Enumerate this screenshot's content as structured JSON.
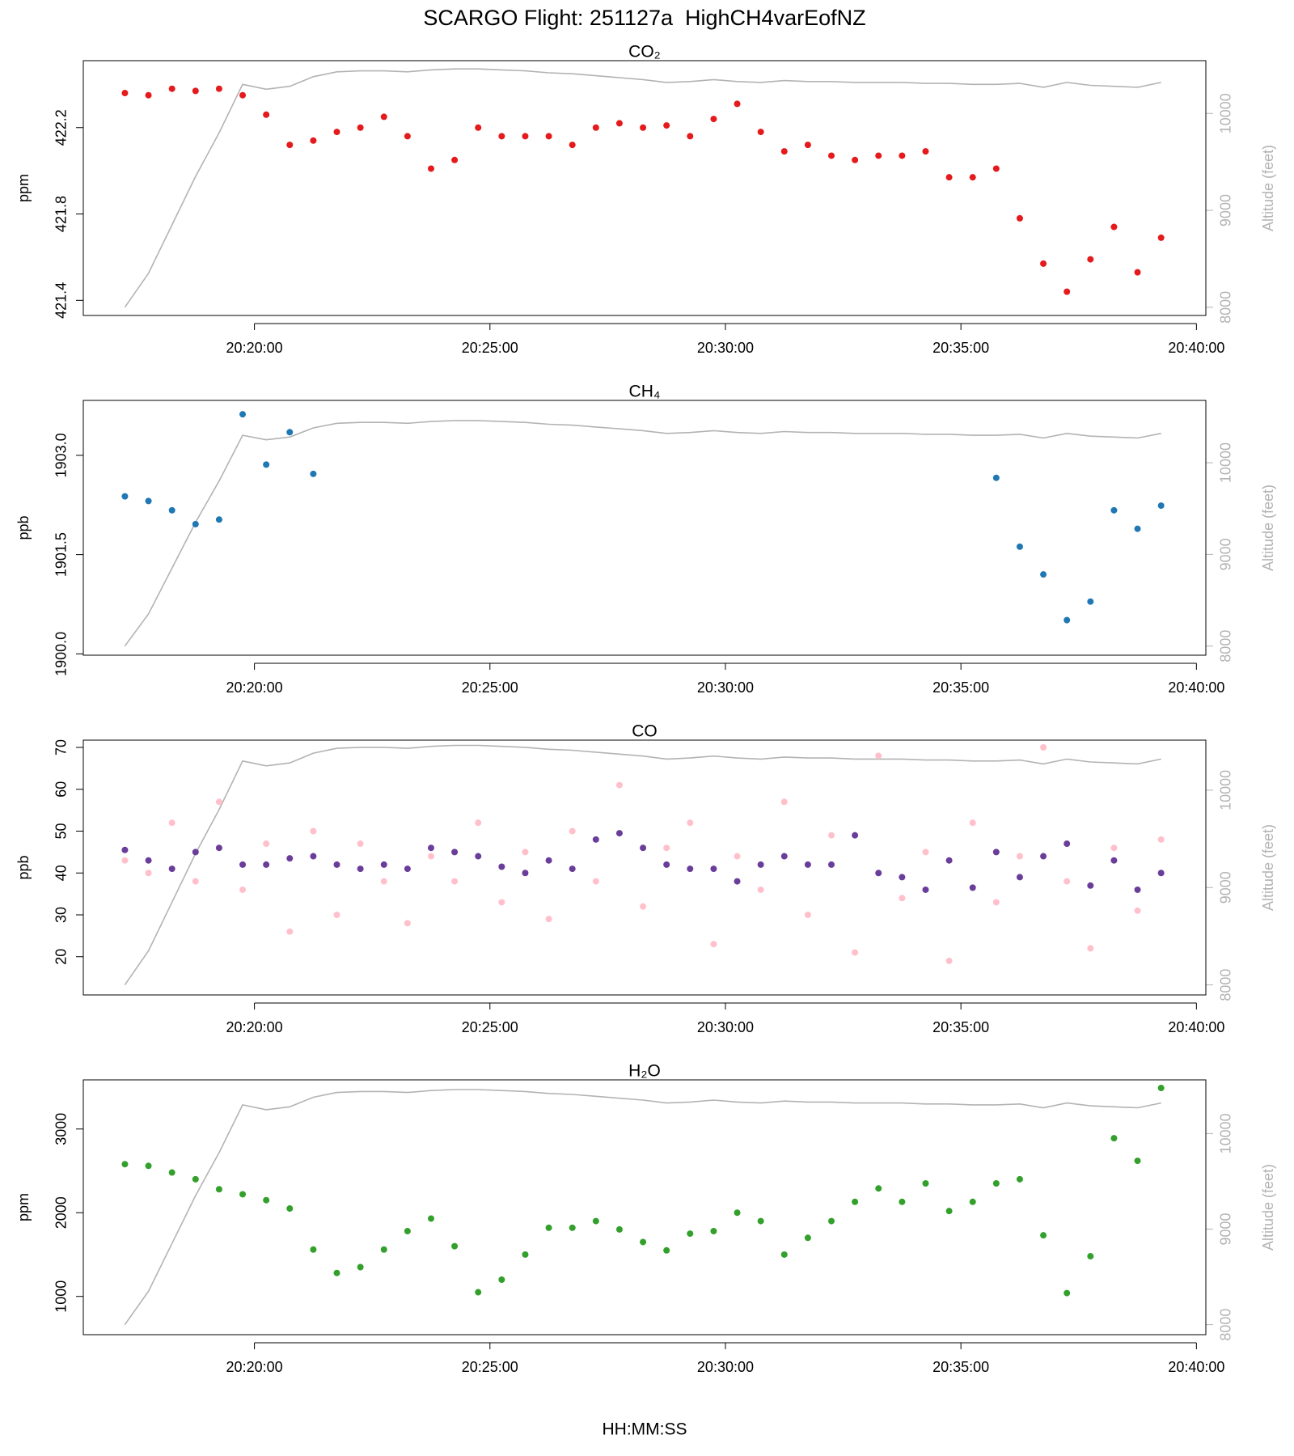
{
  "title": "SCARGO Flight: 251127a  HighCH4varEofNZ",
  "xlabel": "HH:MM:SS",
  "chart_data": [
    {
      "type": "scatter",
      "title": "CO₂",
      "ylabel": "ppm",
      "y2label": "Altitude (feet)",
      "xlim": [
        "20:16:22",
        "20:40:12"
      ],
      "xticks": [
        "20:20:00",
        "20:25:00",
        "20:30:00",
        "20:35:00",
        "20:40:00"
      ],
      "ylim": [
        421.33,
        422.51
      ],
      "yticks": [
        421.4,
        421.8,
        422.2
      ],
      "y2lim": [
        7915,
        10545
      ],
      "y2ticks": [
        8000,
        9000,
        10000
      ],
      "x": [
        "20:17:15",
        "20:17:45",
        "20:18:15",
        "20:18:45",
        "20:19:15",
        "20:19:45",
        "20:20:15",
        "20:20:45",
        "20:21:15",
        "20:21:45",
        "20:22:15",
        "20:22:45",
        "20:23:15",
        "20:23:45",
        "20:24:15",
        "20:24:45",
        "20:25:15",
        "20:25:45",
        "20:26:15",
        "20:26:45",
        "20:27:15",
        "20:27:45",
        "20:28:15",
        "20:28:45",
        "20:29:15",
        "20:29:45",
        "20:30:15",
        "20:30:45",
        "20:31:15",
        "20:31:45",
        "20:32:15",
        "20:32:45",
        "20:33:15",
        "20:33:45",
        "20:34:15",
        "20:34:45",
        "20:35:15",
        "20:35:45",
        "20:36:15",
        "20:36:45",
        "20:37:15",
        "20:37:45",
        "20:38:15",
        "20:38:45",
        "20:39:15"
      ],
      "series": [
        {
          "color": "#e41a1c",
          "values": [
            422.36,
            422.35,
            422.38,
            422.37,
            422.38,
            422.35,
            422.26,
            422.12,
            422.14,
            422.18,
            422.2,
            422.25,
            422.16,
            422.01,
            422.05,
            422.2,
            422.16,
            422.16,
            422.16,
            422.12,
            422.2,
            422.22,
            422.2,
            422.21,
            422.16,
            422.24,
            422.31,
            422.18,
            422.09,
            422.12,
            422.07,
            422.05,
            422.07,
            422.07,
            422.09,
            421.97,
            421.97,
            422.01,
            421.78,
            421.57,
            421.44,
            421.59,
            421.74,
            421.53,
            421.69
          ]
        },
        {
          "color": "#b3b3b3",
          "mode": "line",
          "axis": "y2",
          "values": [
            8000,
            8350,
            8850,
            9350,
            9800,
            10300,
            10250,
            10280,
            10380,
            10430,
            10440,
            10440,
            10430,
            10450,
            10460,
            10460,
            10450,
            10440,
            10420,
            10410,
            10390,
            10370,
            10350,
            10320,
            10330,
            10350,
            10330,
            10320,
            10340,
            10330,
            10330,
            10320,
            10320,
            10320,
            10310,
            10310,
            10300,
            10300,
            10310,
            10270,
            10320,
            10290,
            10280,
            10270,
            10320
          ]
        }
      ]
    },
    {
      "type": "scatter",
      "title": "CH₄",
      "ylabel": "ppb",
      "y2label": "Altitude (feet)",
      "xlim": [
        "20:16:22",
        "20:40:12"
      ],
      "xticks": [
        "20:20:00",
        "20:25:00",
        "20:30:00",
        "20:35:00",
        "20:40:00"
      ],
      "ylim": [
        1899.98,
        1903.83
      ],
      "yticks": [
        {
          "value": 1900,
          "label": "1900.0"
        },
        1901.5,
        {
          "value": 1903,
          "label": "1903.0"
        }
      ],
      "y2lim": [
        7900,
        10680
      ],
      "y2ticks": [
        8000,
        9000,
        10000
      ],
      "x": [
        "20:17:15",
        "20:17:45",
        "20:18:15",
        "20:18:45",
        "20:19:15",
        "20:19:45",
        "20:20:15",
        "20:20:45",
        "20:21:15",
        "20:21:45",
        "20:22:15",
        "20:22:45",
        "20:23:15",
        "20:23:45",
        "20:24:15",
        "20:24:45",
        "20:25:15",
        "20:25:45",
        "20:26:15",
        "20:26:45",
        "20:27:15",
        "20:27:45",
        "20:28:15",
        "20:28:45",
        "20:29:15",
        "20:29:45",
        "20:30:15",
        "20:30:45",
        "20:31:15",
        "20:31:45",
        "20:32:15",
        "20:32:45",
        "20:33:15",
        "20:33:45",
        "20:34:15",
        "20:34:45",
        "20:35:15",
        "20:35:45",
        "20:36:15",
        "20:36:45",
        "20:37:15",
        "20:37:45",
        "20:38:15",
        "20:38:45",
        "20:39:15"
      ],
      "series": [
        {
          "color": "#1f78b4",
          "values": [
            1902.38,
            1902.31,
            1902.17,
            1901.96,
            1902.03,
            1903.62,
            1902.86,
            1903.35,
            1902.72,
            null,
            null,
            null,
            null,
            null,
            null,
            null,
            null,
            null,
            null,
            null,
            null,
            null,
            null,
            null,
            null,
            null,
            null,
            null,
            null,
            null,
            null,
            null,
            null,
            null,
            null,
            null,
            null,
            1902.66,
            1901.62,
            1901.2,
            1900.51,
            1900.79,
            1902.17,
            1901.89,
            1902.24
          ]
        },
        {
          "color": "#b3b3b3",
          "mode": "line",
          "axis": "y2",
          "values": [
            8000,
            8350,
            8850,
            9350,
            9800,
            10300,
            10250,
            10280,
            10380,
            10430,
            10440,
            10440,
            10430,
            10450,
            10460,
            10460,
            10450,
            10440,
            10420,
            10410,
            10390,
            10370,
            10350,
            10320,
            10330,
            10350,
            10330,
            10320,
            10340,
            10330,
            10330,
            10320,
            10320,
            10320,
            10310,
            10310,
            10300,
            10300,
            10310,
            10270,
            10320,
            10290,
            10280,
            10270,
            10320
          ]
        }
      ]
    },
    {
      "type": "scatter",
      "title": "CO",
      "ylabel": "ppb",
      "y2label": "Altitude (feet)",
      "xlim": [
        "20:16:22",
        "20:40:12"
      ],
      "xticks": [
        "20:20:00",
        "20:25:00",
        "20:30:00",
        "20:35:00",
        "20:40:00"
      ],
      "ylim": [
        10.87,
        71.74
      ],
      "yticks": [
        20,
        30,
        40,
        50,
        60,
        70
      ],
      "y2lim": [
        7897,
        10514
      ],
      "y2ticks": [
        8000,
        9000,
        10000
      ],
      "x": [
        "20:17:15",
        "20:17:45",
        "20:18:15",
        "20:18:45",
        "20:19:15",
        "20:19:45",
        "20:20:15",
        "20:20:45",
        "20:21:15",
        "20:21:45",
        "20:22:15",
        "20:22:45",
        "20:23:15",
        "20:23:45",
        "20:24:15",
        "20:24:45",
        "20:25:15",
        "20:25:45",
        "20:26:15",
        "20:26:45",
        "20:27:15",
        "20:27:45",
        "20:28:15",
        "20:28:45",
        "20:29:15",
        "20:29:45",
        "20:30:15",
        "20:30:45",
        "20:31:15",
        "20:31:45",
        "20:32:15",
        "20:32:45",
        "20:33:15",
        "20:33:45",
        "20:34:15",
        "20:34:45",
        "20:35:15",
        "20:35:45",
        "20:36:15",
        "20:36:45",
        "20:37:15",
        "20:37:45",
        "20:38:15",
        "20:38:45",
        "20:39:15"
      ],
      "series": [
        {
          "color": "#ffc0cb",
          "values": [
            43,
            40,
            52,
            38,
            57,
            36,
            47,
            26,
            50,
            30,
            47,
            38,
            28,
            44,
            38,
            52,
            33,
            45,
            29,
            50,
            38,
            61,
            32,
            46,
            52,
            23,
            44,
            36,
            57,
            30,
            49,
            21,
            68,
            34,
            45,
            19,
            52,
            33,
            44,
            70,
            38,
            22,
            46,
            31,
            48
          ]
        },
        {
          "color": "#6a3d9a",
          "values": [
            45.5,
            43,
            41,
            45,
            46,
            42,
            42,
            43.5,
            44,
            42,
            41,
            42,
            41,
            46,
            45,
            44,
            41.5,
            40,
            43,
            41,
            48,
            49.5,
            46,
            42,
            41,
            41,
            38,
            42,
            44,
            42,
            42,
            49,
            40,
            39,
            36,
            43,
            36.5,
            45,
            39,
            44,
            47,
            37,
            43,
            36,
            40
          ]
        },
        {
          "color": "#b3b3b3",
          "mode": "line",
          "axis": "y2",
          "values": [
            8000,
            8350,
            8850,
            9350,
            9800,
            10300,
            10250,
            10280,
            10380,
            10430,
            10440,
            10440,
            10430,
            10450,
            10460,
            10460,
            10450,
            10440,
            10420,
            10410,
            10390,
            10370,
            10350,
            10320,
            10330,
            10350,
            10330,
            10320,
            10340,
            10330,
            10330,
            10320,
            10320,
            10320,
            10310,
            10310,
            10300,
            10300,
            10310,
            10270,
            10320,
            10290,
            10280,
            10270,
            10320
          ]
        }
      ]
    },
    {
      "type": "scatter",
      "title": "H₂O",
      "ylabel": "ppm",
      "y2label": "Altitude (feet)",
      "xlim": [
        "20:16:22",
        "20:40:12"
      ],
      "xticks": [
        "20:20:00",
        "20:25:00",
        "20:30:00",
        "20:35:00",
        "20:40:00"
      ],
      "ylim": [
        543,
        3587
      ],
      "yticks": [
        1000,
        2000,
        3000
      ],
      "y2lim": [
        7895,
        10562
      ],
      "y2ticks": [
        8000,
        9000,
        10000
      ],
      "x": [
        "20:17:15",
        "20:17:45",
        "20:18:15",
        "20:18:45",
        "20:19:15",
        "20:19:45",
        "20:20:15",
        "20:20:45",
        "20:21:15",
        "20:21:45",
        "20:22:15",
        "20:22:45",
        "20:23:15",
        "20:23:45",
        "20:24:15",
        "20:24:45",
        "20:25:15",
        "20:25:45",
        "20:26:15",
        "20:26:45",
        "20:27:15",
        "20:27:45",
        "20:28:15",
        "20:28:45",
        "20:29:15",
        "20:29:45",
        "20:30:15",
        "20:30:45",
        "20:31:15",
        "20:31:45",
        "20:32:15",
        "20:32:45",
        "20:33:15",
        "20:33:45",
        "20:34:15",
        "20:34:45",
        "20:35:15",
        "20:35:45",
        "20:36:15",
        "20:36:45",
        "20:37:15",
        "20:37:45",
        "20:38:15",
        "20:38:45",
        "20:39:15"
      ],
      "series": [
        {
          "color": "#33a02c",
          "values": [
            2580,
            2560,
            2480,
            2400,
            2280,
            2220,
            2150,
            2050,
            1560,
            1280,
            1350,
            1560,
            1780,
            1930,
            1600,
            1050,
            1200,
            1500,
            1820,
            1820,
            1900,
            1800,
            1650,
            1550,
            1750,
            1780,
            2000,
            1900,
            1500,
            1700,
            1900,
            2130,
            2290,
            2130,
            2350,
            2020,
            2130,
            2350,
            2400,
            1730,
            1040,
            1480,
            2890,
            2620,
            3490
          ]
        },
        {
          "color": "#b3b3b3",
          "mode": "line",
          "axis": "y2",
          "values": [
            8000,
            8350,
            8850,
            9350,
            9800,
            10300,
            10250,
            10280,
            10380,
            10430,
            10440,
            10440,
            10430,
            10450,
            10460,
            10460,
            10450,
            10440,
            10420,
            10410,
            10390,
            10370,
            10350,
            10320,
            10330,
            10350,
            10330,
            10320,
            10340,
            10330,
            10330,
            10320,
            10320,
            10320,
            10310,
            10310,
            10300,
            10300,
            10310,
            10270,
            10320,
            10290,
            10280,
            10270,
            10320
          ]
        }
      ]
    }
  ]
}
